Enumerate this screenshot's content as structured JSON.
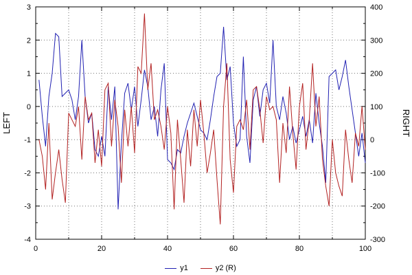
{
  "chart_data": {
    "type": "line",
    "title": "",
    "xlabel": "",
    "ylabel_left": "LEFT",
    "ylabel_right": "RIGHT",
    "xlim": [
      0,
      100
    ],
    "ylim_left": [
      -4,
      3
    ],
    "ylim_right": [
      -300,
      400
    ],
    "xticks_major": [
      0,
      20,
      40,
      60,
      80,
      100
    ],
    "xgrid_step": 10,
    "yticks_left": [
      3,
      2,
      1,
      0,
      -1,
      -2,
      -3,
      -4
    ],
    "yticks_right": [
      400,
      300,
      200,
      100,
      0,
      -100,
      -200,
      -300
    ],
    "grid": true,
    "grid_color": "#707070",
    "axis_color": "#000000",
    "background": "#ffffff",
    "legend_position": "bottom-center",
    "x": [
      1,
      2,
      3,
      4,
      5,
      6,
      7,
      8,
      9,
      10,
      11,
      12,
      13,
      14,
      15,
      16,
      17,
      18,
      19,
      20,
      21,
      22,
      23,
      24,
      25,
      26,
      27,
      28,
      29,
      30,
      31,
      32,
      33,
      34,
      35,
      36,
      37,
      38,
      39,
      40,
      41,
      42,
      43,
      44,
      45,
      46,
      47,
      48,
      49,
      50,
      51,
      52,
      53,
      54,
      55,
      56,
      57,
      58,
      59,
      60,
      61,
      62,
      63,
      64,
      65,
      66,
      67,
      68,
      69,
      70,
      71,
      72,
      73,
      74,
      75,
      76,
      77,
      78,
      79,
      80,
      81,
      82,
      83,
      84,
      85,
      86,
      87,
      88,
      89,
      90,
      91,
      92,
      93,
      94,
      95,
      96,
      97,
      98,
      99,
      100
    ],
    "series": [
      {
        "name": "y1",
        "axis": "left",
        "color": "#2020b2",
        "values": [
          0.8,
          -0.3,
          -1.2,
          0.3,
          1.0,
          2.2,
          2.1,
          0.3,
          0.4,
          0.5,
          0.2,
          -0.4,
          0.3,
          2.0,
          0.3,
          -0.5,
          -0.2,
          -1.3,
          -1.5,
          -0.9,
          -1.5,
          0.6,
          -0.4,
          0.6,
          -3.1,
          -1.1,
          0.4,
          0.7,
          -0.1,
          0.6,
          -0.6,
          0.2,
          1.1,
          0.6,
          -0.4,
          0.0,
          -0.9,
          0.5,
          1.3,
          -1.6,
          -1.7,
          -1.9,
          -1.3,
          -1.4,
          -0.9,
          -0.5,
          -0.2,
          0.1,
          -0.3,
          -0.7,
          -0.8,
          -1.0,
          -0.4,
          0.3,
          0.9,
          1.0,
          2.4,
          0.8,
          1.2,
          -0.5,
          -1.2,
          -1.0,
          1.5,
          -0.9,
          -1.7,
          0.2,
          0.6,
          -0.3,
          0.5,
          0.7,
          0.1,
          2.0,
          0.0,
          -0.4,
          0.3,
          -0.2,
          -1.0,
          -0.6,
          -1.1,
          -0.7,
          -0.3,
          -0.9,
          -0.4,
          -1.1,
          0.4,
          -0.5,
          -1.2,
          -2.3,
          0.9,
          1.0,
          1.1,
          0.5,
          0.9,
          1.4,
          0.6,
          -0.1,
          -0.8,
          -1.5,
          -0.8,
          -1.7
        ]
      },
      {
        "name": "y2 (R)",
        "axis": "right",
        "color": "#b22020",
        "values": [
          0,
          -50,
          -150,
          50,
          -180,
          -100,
          -30,
          -120,
          -190,
          80,
          60,
          40,
          100,
          -60,
          130,
          60,
          80,
          -70,
          30,
          -80,
          150,
          170,
          -20,
          120,
          40,
          -130,
          90,
          -20,
          100,
          -40,
          220,
          200,
          380,
          150,
          230,
          60,
          90,
          40,
          -30,
          100,
          20,
          -210,
          60,
          -60,
          -190,
          30,
          -80,
          90,
          -20,
          120,
          20,
          -100,
          -40,
          30,
          -120,
          -255,
          100,
          230,
          -60,
          -160,
          40,
          60,
          30,
          120,
          -30,
          150,
          160,
          90,
          -10,
          130,
          90,
          100,
          60,
          -130,
          50,
          -40,
          160,
          20,
          -90,
          100,
          170,
          -30,
          60,
          230,
          40,
          130,
          -60,
          -140,
          -200,
          0,
          -100,
          -140,
          -170,
          30,
          -60,
          -130,
          20,
          -20,
          100,
          -30
        ]
      }
    ]
  }
}
